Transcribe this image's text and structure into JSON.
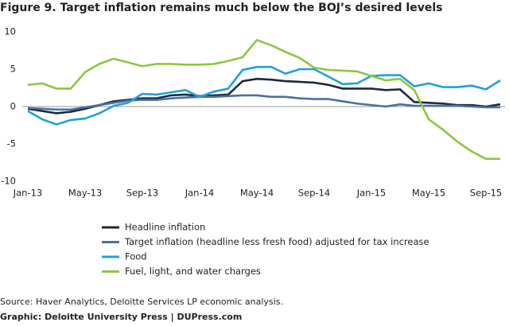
{
  "chart_data": {
    "type": "line",
    "title": "Figure 9. Target inflation remains much below the BOJ’s desired levels",
    "categories": [
      "Jan-13",
      null,
      null,
      null,
      "May-13",
      null,
      null,
      null,
      "Sep-13",
      null,
      null,
      null,
      "Jan-14",
      null,
      null,
      null,
      "May-14",
      null,
      null,
      null,
      "Sep-14",
      null,
      null,
      null,
      "Jan-15",
      null,
      null,
      null,
      "May-15",
      null,
      null,
      null,
      "Sep-15",
      null
    ],
    "series": [
      {
        "name": "Headline inflation",
        "color": "#1c2a3a",
        "values": [
          -0.3,
          -0.6,
          -0.9,
          -0.7,
          -0.3,
          0.2,
          0.7,
          0.9,
          1.1,
          1.1,
          1.5,
          1.6,
          1.4,
          1.5,
          1.6,
          3.4,
          3.7,
          3.6,
          3.4,
          3.3,
          3.2,
          2.9,
          2.4,
          2.4,
          2.4,
          2.2,
          2.3,
          0.6,
          0.5,
          0.4,
          0.2,
          0.2,
          0.0,
          0.3
        ]
      },
      {
        "name": "Target inflation (headline less fresh food) adjusted for tax increase",
        "color": "#4a6fa5",
        "values": [
          -0.2,
          -0.3,
          -0.4,
          -0.4,
          -0.1,
          0.2,
          0.5,
          0.8,
          0.9,
          0.9,
          1.1,
          1.2,
          1.3,
          1.3,
          1.4,
          1.5,
          1.5,
          1.3,
          1.3,
          1.1,
          1.0,
          1.0,
          0.7,
          0.4,
          0.2,
          0.0,
          0.3,
          0.1,
          0.1,
          0.1,
          0.1,
          0.0,
          -0.1,
          -0.1
        ]
      },
      {
        "name": "Food",
        "color": "#22a0d8",
        "values": [
          -0.6,
          -1.7,
          -2.4,
          -1.8,
          -1.6,
          -0.9,
          0.1,
          0.5,
          1.7,
          1.6,
          1.9,
          2.2,
          1.3,
          2.0,
          2.4,
          4.9,
          5.3,
          5.3,
          4.4,
          5.0,
          5.0,
          4.0,
          3.0,
          3.1,
          4.1,
          4.2,
          4.2,
          2.7,
          3.1,
          2.6,
          2.6,
          2.8,
          2.3,
          3.5
        ]
      },
      {
        "name": "Fuel, light, and water charges",
        "color": "#8cc63f",
        "values": [
          2.9,
          3.1,
          2.4,
          2.4,
          4.6,
          5.7,
          6.4,
          5.9,
          5.4,
          5.7,
          5.7,
          5.6,
          5.6,
          5.7,
          6.1,
          6.6,
          8.9,
          8.2,
          7.3,
          6.5,
          5.2,
          4.9,
          4.8,
          4.7,
          4.1,
          3.5,
          3.7,
          2.2,
          -1.7,
          -3.1,
          -4.7,
          -6.0,
          -7.0,
          -7.0
        ]
      }
    ],
    "ylim": [
      -10,
      10
    ],
    "yticks": [
      -10,
      -5,
      0,
      5,
      10
    ],
    "grid": false,
    "source": "Source: Haver Analytics, Deloitte Services LP economic analysis.",
    "credit": "Graphic: Deloitte University Press  |  DUPress.com"
  }
}
